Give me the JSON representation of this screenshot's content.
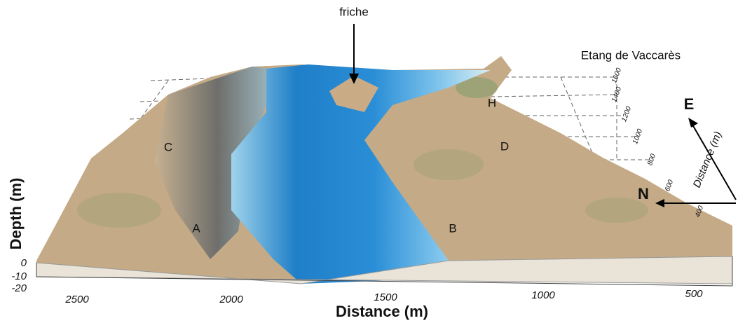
{
  "annotations": {
    "site": "friche",
    "lake": "Etang de Vaccarès",
    "points": [
      "A",
      "B",
      "C",
      "D",
      "H"
    ],
    "compass": [
      "E",
      "N"
    ]
  },
  "x_axis": {
    "title": "Distance (m)",
    "ticks": [
      "2500",
      "2000",
      "1500",
      "1000",
      "500"
    ]
  },
  "y_axis": {
    "title": "Distance (m)",
    "ticks": [
      "1600",
      "1400",
      "1200",
      "1000",
      "800",
      "600",
      "400"
    ]
  },
  "z_axis": {
    "title": "Depth (m)",
    "ticks": [
      "0",
      "-10",
      "-20"
    ]
  }
}
